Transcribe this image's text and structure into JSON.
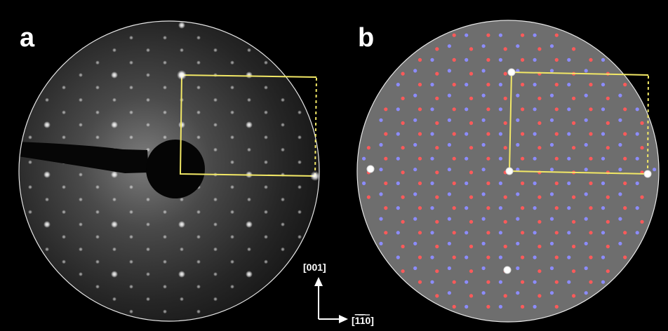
{
  "panels": [
    {
      "label": "a",
      "kind": "diffraction-photo"
    },
    {
      "label": "b",
      "kind": "simulated-pattern"
    }
  ],
  "axes": {
    "vertical": {
      "text": "[001]"
    },
    "horizontal": {
      "pre": "[",
      "overbar_1": "1",
      "overbar_2": "1",
      "post": "0]"
    }
  },
  "colors": {
    "background": "#000000",
    "sim_background": "#6e6e6e",
    "circle_border": "#e6e6e6",
    "cell": "#f2e866",
    "spot_red": "#ff5a5a",
    "spot_blue": "#8c8cff",
    "spot_white": "#ffffff"
  }
}
